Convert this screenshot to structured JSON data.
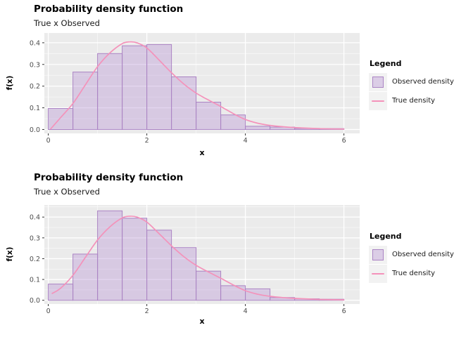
{
  "figure": {
    "background": "#FFFFFF"
  },
  "colors": {
    "panel_bg": "#EBEBEB",
    "grid": "#FFFFFF",
    "bar_fill": "#B28AD0",
    "bar_fill_alpha": 0.35,
    "bar_stroke": "#AB84C4",
    "curve": "#F492BA",
    "axis_text": "#4D4D4D",
    "tick_mark": "#333333",
    "legend_key_bg": "#F2F2F2"
  },
  "chart_data": [
    {
      "type": "bar",
      "subtype": "histogram-with-density-line",
      "title": "Probability density function",
      "subtitle": "True x Observed",
      "xlabel": "x",
      "ylabel": "f(x)",
      "legend_title": "Legend",
      "legend_items": [
        "Observed density",
        "True density"
      ],
      "legend_position": "right",
      "grid": "on",
      "x_ticks": [
        0,
        2,
        4,
        6
      ],
      "x_minor": [
        1,
        3,
        5
      ],
      "y_ticks": [
        0,
        0.1,
        0.2,
        0.3,
        0.4
      ],
      "y_minor": [
        0.05,
        0.15,
        0.25,
        0.35,
        0.45
      ],
      "xlim": [
        -0.08,
        6.32
      ],
      "ylim": [
        -0.018,
        0.445
      ],
      "bin_start": 0,
      "bin_width": 0.5,
      "bar_series_name": "Observed density",
      "bar_values": [
        0.097,
        0.265,
        0.35,
        0.386,
        0.392,
        0.243,
        0.126,
        0.067,
        0.015,
        0.011,
        0.005,
        0.004
      ],
      "curve_series_name": "True density",
      "curve": {
        "x": [
          0.05,
          0.25,
          0.5,
          0.75,
          1.0,
          1.25,
          1.5,
          1.65,
          1.8,
          2.0,
          2.25,
          2.5,
          2.75,
          3.0,
          3.25,
          3.5,
          3.75,
          4.0,
          4.25,
          4.5,
          4.75,
          5.0,
          5.5,
          6.0
        ],
        "y": [
          0.003,
          0.055,
          0.12,
          0.205,
          0.29,
          0.353,
          0.396,
          0.404,
          0.4,
          0.376,
          0.32,
          0.262,
          0.21,
          0.168,
          0.136,
          0.106,
          0.074,
          0.046,
          0.029,
          0.019,
          0.013,
          0.009,
          0.004,
          0.002
        ]
      }
    },
    {
      "type": "bar",
      "subtype": "histogram-with-density-line",
      "title": "Probability density function",
      "subtitle": "True x Observed",
      "xlabel": "x",
      "ylabel": "f(x)",
      "legend_title": "Legend",
      "legend_items": [
        "Observed density",
        "True density"
      ],
      "legend_position": "right",
      "grid": "on",
      "x_ticks": [
        0,
        2,
        4,
        6
      ],
      "x_minor": [
        1,
        3,
        5
      ],
      "y_ticks": [
        0,
        0.1,
        0.2,
        0.3,
        0.4
      ],
      "y_minor": [
        0.05,
        0.15,
        0.25,
        0.35,
        0.45
      ],
      "xlim": [
        -0.08,
        6.32
      ],
      "ylim": [
        -0.018,
        0.458
      ],
      "bin_start": 0,
      "bin_width": 0.5,
      "bar_series_name": "Observed density",
      "bar_values": [
        0.078,
        0.222,
        0.43,
        0.395,
        0.337,
        0.253,
        0.14,
        0.07,
        0.055,
        0.013,
        0.007,
        0.005
      ],
      "curve_series_name": "True density",
      "curve": {
        "x": [
          0.08,
          0.25,
          0.5,
          0.75,
          1.0,
          1.25,
          1.5,
          1.65,
          1.8,
          2.0,
          2.25,
          2.5,
          2.75,
          3.0,
          3.25,
          3.5,
          3.75,
          4.0,
          4.25,
          4.5,
          4.75,
          5.0,
          5.5,
          6.0
        ],
        "y": [
          0.033,
          0.058,
          0.12,
          0.205,
          0.29,
          0.353,
          0.396,
          0.404,
          0.4,
          0.376,
          0.32,
          0.262,
          0.21,
          0.168,
          0.136,
          0.106,
          0.074,
          0.046,
          0.029,
          0.019,
          0.013,
          0.009,
          0.004,
          0.002
        ]
      }
    }
  ]
}
